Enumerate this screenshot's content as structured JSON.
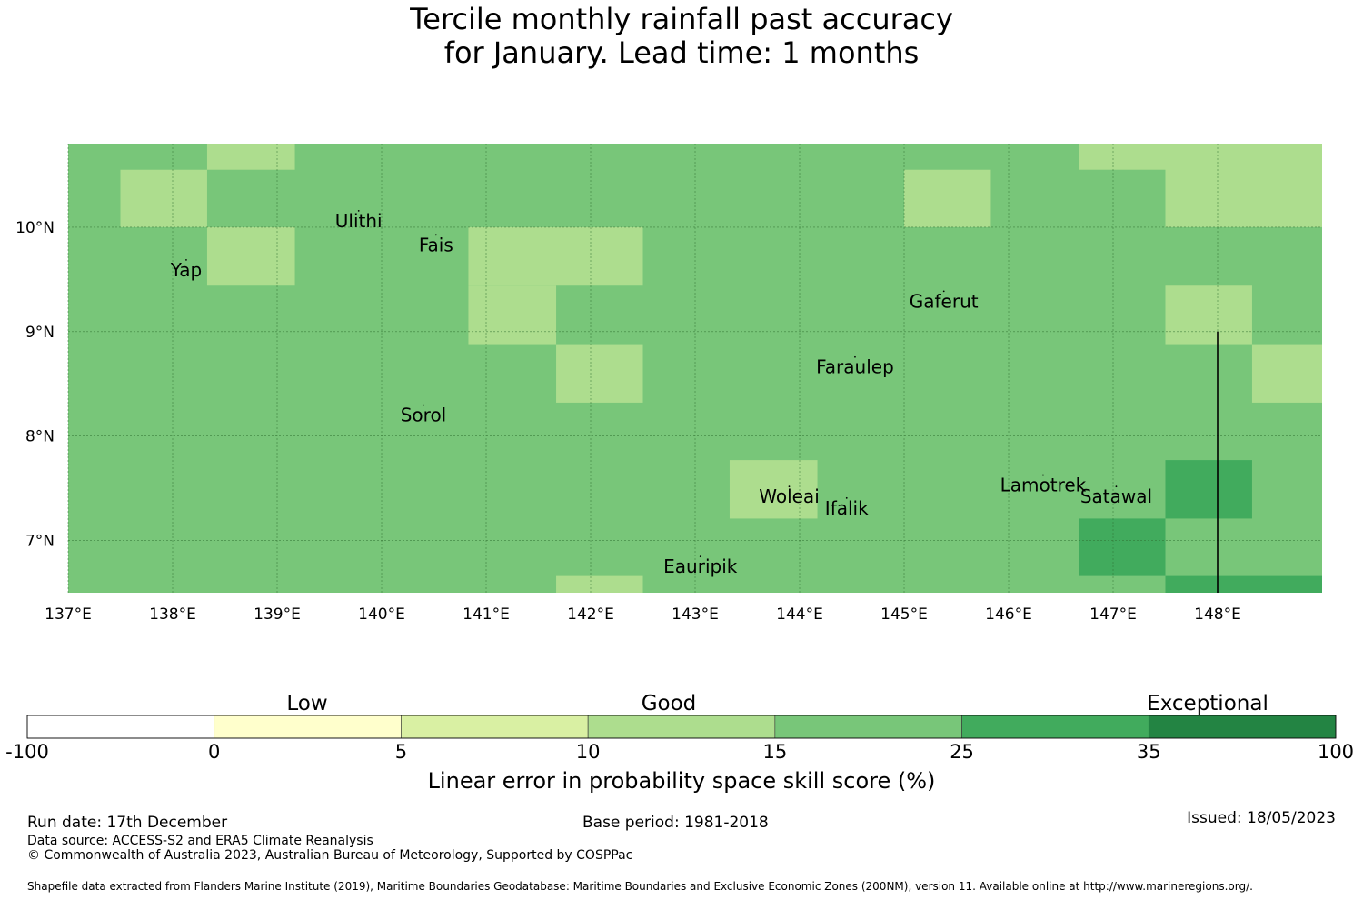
{
  "title": {
    "line1": "Tercile monthly rainfall past accuracy",
    "line2": "for January. Lead time: 1 months"
  },
  "map": {
    "lat_range": [
      6.5,
      10.8
    ],
    "lon_range": [
      137.0,
      149.0
    ],
    "lat_ticks": [
      {
        "value": 7,
        "label": "7°N"
      },
      {
        "value": 8,
        "label": "8°N"
      },
      {
        "value": 9,
        "label": "9°N"
      },
      {
        "value": 10,
        "label": "10°N"
      }
    ],
    "lon_ticks": [
      {
        "value": 137,
        "label": "137°E"
      },
      {
        "value": 138,
        "label": "138°E"
      },
      {
        "value": 139,
        "label": "139°E"
      },
      {
        "value": 140,
        "label": "140°E"
      },
      {
        "value": 141,
        "label": "141°E"
      },
      {
        "value": 142,
        "label": "142°E"
      },
      {
        "value": 143,
        "label": "143°E"
      },
      {
        "value": 144,
        "label": "144°E"
      },
      {
        "value": 145,
        "label": "145°E"
      },
      {
        "value": 146,
        "label": "146°E"
      },
      {
        "value": 147,
        "label": "147°E"
      },
      {
        "value": 148,
        "label": "148°E"
      }
    ],
    "grid": true,
    "base_class": "15-25",
    "cells": [
      {
        "lon": [
          137.5,
          138.33
        ],
        "lat": [
          10.0,
          10.55
        ],
        "class": "10-15"
      },
      {
        "lon": [
          138.33,
          139.17
        ],
        "lat": [
          10.55,
          10.8
        ],
        "class": "10-15"
      },
      {
        "lon": [
          138.33,
          139.17
        ],
        "lat": [
          9.44,
          10.0
        ],
        "class": "10-15"
      },
      {
        "lon": [
          140.83,
          142.5
        ],
        "lat": [
          9.44,
          10.0
        ],
        "class": "10-15"
      },
      {
        "lon": [
          140.83,
          141.67
        ],
        "lat": [
          8.88,
          9.44
        ],
        "class": "10-15"
      },
      {
        "lon": [
          141.67,
          142.5
        ],
        "lat": [
          8.32,
          8.88
        ],
        "class": "10-15"
      },
      {
        "lon": [
          145.0,
          145.83
        ],
        "lat": [
          10.0,
          10.55
        ],
        "class": "10-15"
      },
      {
        "lon": [
          146.67,
          147.5
        ],
        "lat": [
          10.55,
          10.8
        ],
        "class": "10-15"
      },
      {
        "lon": [
          147.5,
          149.0
        ],
        "lat": [
          10.0,
          10.8
        ],
        "class": "10-15"
      },
      {
        "lon": [
          147.5,
          148.33
        ],
        "lat": [
          8.88,
          9.44
        ],
        "class": "10-15"
      },
      {
        "lon": [
          148.33,
          149.0
        ],
        "lat": [
          8.32,
          8.88
        ],
        "class": "10-15"
      },
      {
        "lon": [
          143.33,
          144.17
        ],
        "lat": [
          7.21,
          7.77
        ],
        "class": "10-15"
      },
      {
        "lon": [
          141.67,
          142.5
        ],
        "lat": [
          6.5,
          6.66
        ],
        "class": "10-15"
      },
      {
        "lon": [
          147.5,
          148.33
        ],
        "lat": [
          7.21,
          7.77
        ],
        "class": "25-35"
      },
      {
        "lon": [
          146.67,
          147.5
        ],
        "lat": [
          6.66,
          7.21
        ],
        "class": "25-35"
      },
      {
        "lon": [
          147.5,
          149.0
        ],
        "lat": [
          6.5,
          6.66
        ],
        "class": "25-35"
      }
    ],
    "boundary_line": {
      "lon": 148.0,
      "lat": [
        6.5,
        9.0
      ]
    },
    "places": [
      {
        "name": "Ulithi",
        "lon": 139.78,
        "lat": 10.0
      },
      {
        "name": "Fais",
        "lon": 140.52,
        "lat": 9.77
      },
      {
        "name": "Yap",
        "lon": 138.13,
        "lat": 9.53
      },
      {
        "name": "Gaferut",
        "lon": 145.38,
        "lat": 9.23
      },
      {
        "name": "Faraulep",
        "lon": 144.53,
        "lat": 8.6
      },
      {
        "name": "Sorol",
        "lon": 140.4,
        "lat": 8.14
      },
      {
        "name": "Woleai",
        "lon": 143.9,
        "lat": 7.36
      },
      {
        "name": "Ifalik",
        "lon": 144.45,
        "lat": 7.25
      },
      {
        "name": "Lamotrek",
        "lon": 146.33,
        "lat": 7.47
      },
      {
        "name": "Satawal",
        "lon": 147.03,
        "lat": 7.36
      },
      {
        "name": "Eauripik",
        "lon": 143.05,
        "lat": 6.69
      }
    ]
  },
  "colors": {
    "-100-0": "#ffffff",
    "0-5": "#ffffcc",
    "5-10": "#d9f0a3",
    "10-15": "#addd8e",
    "15-25": "#78c679",
    "25-35": "#41ab5d",
    "35-100": "#238443",
    "grid": "#2f6f2f",
    "boundary": "#000000"
  },
  "legend": {
    "bins": [
      "-100-0",
      "0-5",
      "5-10",
      "10-15",
      "15-25",
      "25-35",
      "35-100"
    ],
    "ticks": [
      "-100",
      "0",
      "5",
      "10",
      "15",
      "25",
      "35",
      "100"
    ],
    "categories": [
      "Low",
      "Good",
      "Exceptional"
    ],
    "title": "Linear error in probability space skill score (%)"
  },
  "footer": {
    "run_date": "Run date: 17th December",
    "data_source": "Data source: ACCESS-S2 and ERA5 Climate Reanalysis",
    "copyright": "© Commonwealth of Australia 2023, Australian Bureau of Meteorology, Supported by COSPPac",
    "base_period": "Base period: 1981-2018",
    "issued": "Issued: 18/05/2023",
    "shapefile": "Shapefile data extracted from Flanders Marine Institute (2019), Maritime Boundaries Geodatabase: Maritime Boundaries and Exclusive Economic Zones (200NM), version 11. Available online at http://www.marineregions.org/."
  }
}
